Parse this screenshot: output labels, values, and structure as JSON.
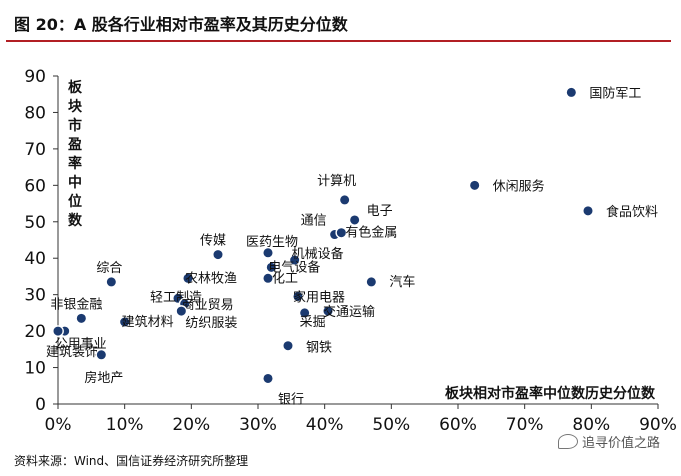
{
  "header": {
    "title": "图 20：A 股各行业相对市盈率及其历史分位数"
  },
  "footer": {
    "source": "资料来源：Wind、国信证券经济研究所整理"
  },
  "watermark": {
    "text": "追寻价值之路",
    "icon": "wechat-icon"
  },
  "chart_data": {
    "type": "scatter",
    "title": "",
    "xlabel": "板块相对市盈率中位数历史分位数",
    "ylabel": "板块市盈率中位数",
    "xlim": [
      0,
      0.9
    ],
    "ylim": [
      0,
      90
    ],
    "x_ticks": [
      "0%",
      "10%",
      "20%",
      "30%",
      "40%",
      "50%",
      "60%",
      "70%",
      "80%",
      "90%"
    ],
    "y_ticks": [
      "0",
      "10",
      "20",
      "30",
      "40",
      "50",
      "60",
      "70",
      "80",
      "90"
    ],
    "grid": false,
    "marker_color": "#1b3a70",
    "points": [
      {
        "label": "国防军工",
        "x": 0.77,
        "y": 85.5
      },
      {
        "label": "计算机",
        "x": 0.43,
        "y": 56
      },
      {
        "label": "休闲服务",
        "x": 0.625,
        "y": 60
      },
      {
        "label": "食品饮料",
        "x": 0.795,
        "y": 53
      },
      {
        "label": "电子",
        "x": 0.445,
        "y": 50.5
      },
      {
        "label": "通信",
        "x": 0.415,
        "y": 46.5
      },
      {
        "label": "有色金属",
        "x": 0.425,
        "y": 47
      },
      {
        "label": "传媒",
        "x": 0.24,
        "y": 41
      },
      {
        "label": "医药生物",
        "x": 0.315,
        "y": 41.5
      },
      {
        "label": "机械设备",
        "x": 0.355,
        "y": 39.5
      },
      {
        "label": "电气设备",
        "x": 0.32,
        "y": 37.5
      },
      {
        "label": "农林牧渔",
        "x": 0.195,
        "y": 34.5
      },
      {
        "label": "化工",
        "x": 0.315,
        "y": 34.5
      },
      {
        "label": "汽车",
        "x": 0.47,
        "y": 33.5
      },
      {
        "label": "综合",
        "x": 0.08,
        "y": 33.5
      },
      {
        "label": "轻工制造",
        "x": 0.18,
        "y": 29
      },
      {
        "label": "家用电器",
        "x": 0.36,
        "y": 29.5
      },
      {
        "label": "商业贸易",
        "x": 0.19,
        "y": 27.5
      },
      {
        "label": "纺织服装",
        "x": 0.185,
        "y": 25.5
      },
      {
        "label": "采掘",
        "x": 0.37,
        "y": 25
      },
      {
        "label": "交通运输",
        "x": 0.405,
        "y": 25.5
      },
      {
        "label": "非银金融",
        "x": 0.035,
        "y": 23.5
      },
      {
        "label": "建筑材料",
        "x": 0.1,
        "y": 22.5
      },
      {
        "label": "公用事业",
        "x": 0.01,
        "y": 20
      },
      {
        "label": "建筑装饰",
        "x": 0.0,
        "y": 20
      },
      {
        "label": "房地产",
        "x": 0.065,
        "y": 13.5
      },
      {
        "label": "钢铁",
        "x": 0.345,
        "y": 16
      },
      {
        "label": "银行",
        "x": 0.315,
        "y": 7
      }
    ]
  }
}
